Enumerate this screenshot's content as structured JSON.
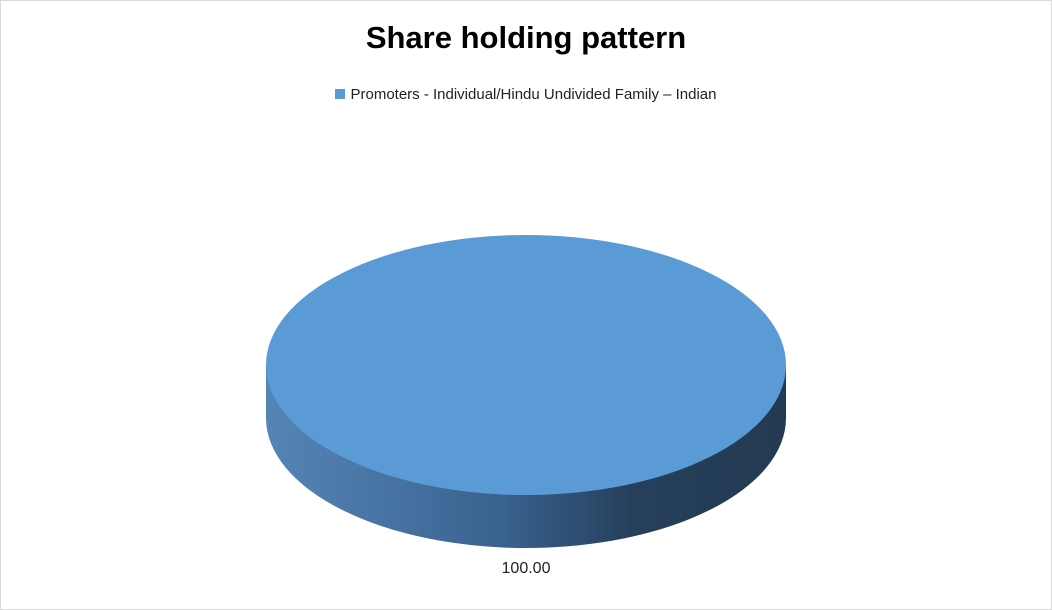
{
  "chart_data": {
    "type": "pie",
    "style": "3d",
    "title": "Share holding pattern",
    "legend_position": "top",
    "categories": [
      "Promoters - Individual/Hindu Undivided Family – Indian"
    ],
    "values": [
      100.0
    ],
    "data_labels": [
      "100.00"
    ],
    "colors": [
      "#5b9bd5"
    ]
  }
}
